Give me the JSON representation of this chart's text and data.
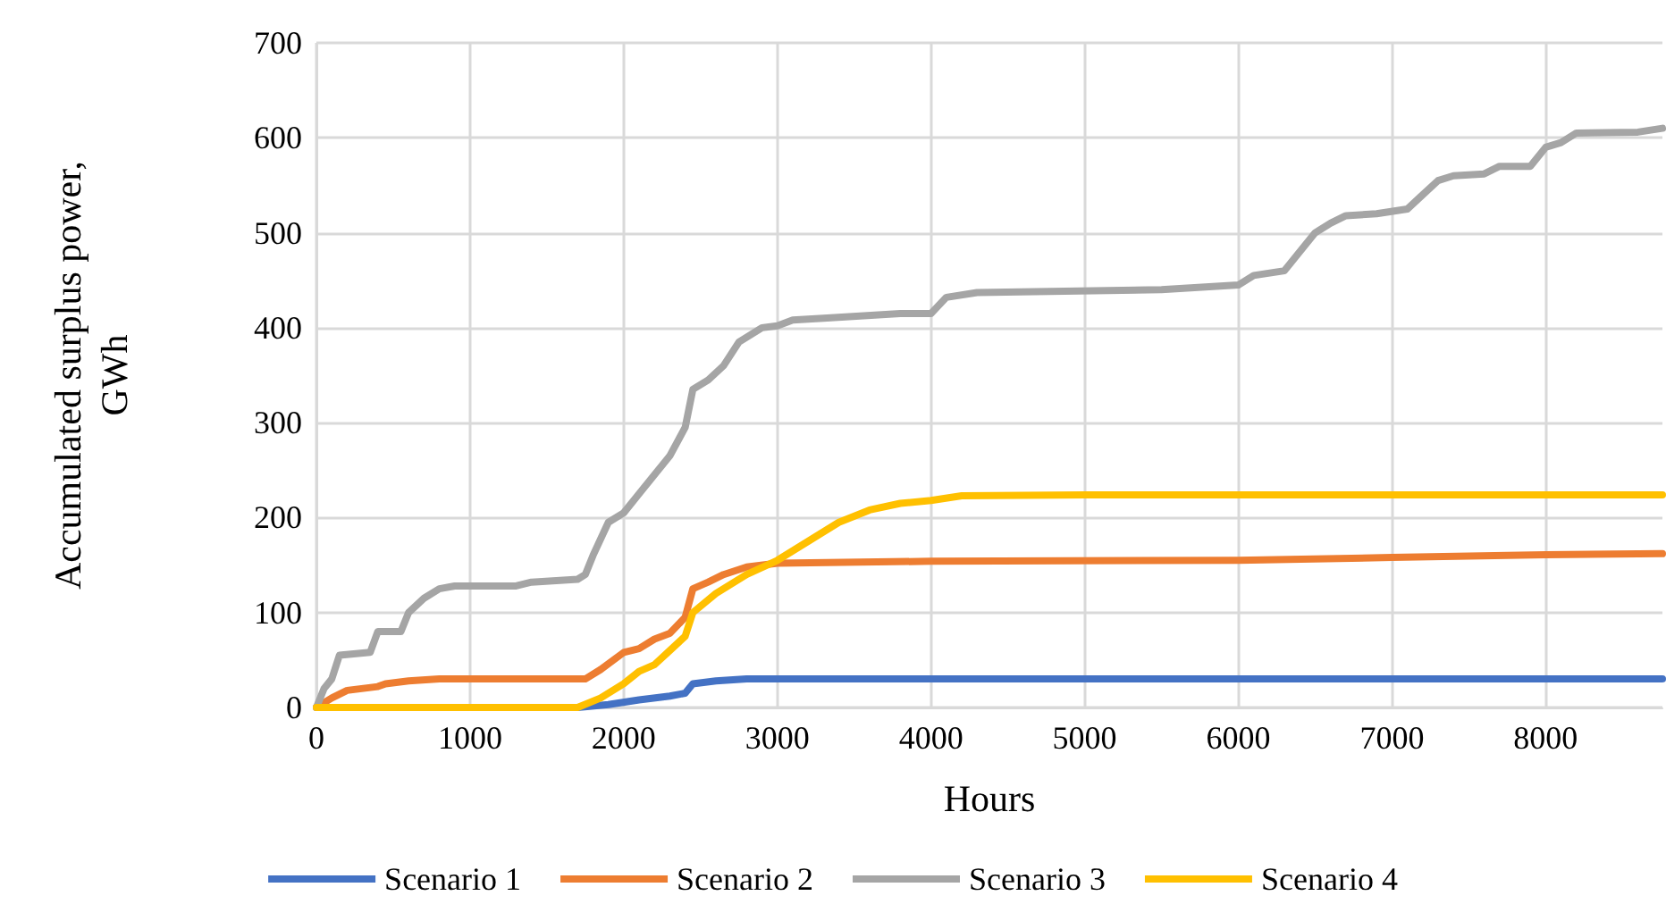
{
  "chart_data": {
    "type": "line",
    "xlabel": "Hours",
    "ylabel": "Accumulated surplus power,\nGWh",
    "xlim": [
      0,
      8760
    ],
    "xticks": [
      0,
      1000,
      2000,
      3000,
      4000,
      5000,
      6000,
      7000,
      8000
    ],
    "ylim": [
      0,
      700
    ],
    "yticks": [
      0,
      100,
      200,
      300,
      400,
      500,
      600,
      700
    ],
    "grid": true,
    "legend": "bottom",
    "marker": "none",
    "line_style": "solid",
    "series": [
      {
        "name": "Scenario 1",
        "color": "#4472c4",
        "x": [
          0,
          1700,
          1900,
          2100,
          2300,
          2400,
          2450,
          2600,
          2800,
          8760
        ],
        "values": [
          0,
          0,
          3,
          8,
          12,
          15,
          25,
          28,
          30,
          30
        ]
      },
      {
        "name": "Scenario 2",
        "color": "#ed7d31",
        "x": [
          0,
          100,
          200,
          400,
          450,
          600,
          800,
          1750,
          1850,
          2000,
          2100,
          2200,
          2300,
          2400,
          2450,
          2550,
          2650,
          2800,
          3000,
          4000,
          6000,
          7000,
          8000,
          8760
        ],
        "values": [
          0,
          10,
          18,
          22,
          25,
          28,
          30,
          30,
          40,
          58,
          62,
          72,
          78,
          95,
          125,
          132,
          140,
          148,
          152,
          154,
          155,
          158,
          161,
          162
        ]
      },
      {
        "name": "Scenario 3",
        "color": "#a5a5a5",
        "x": [
          0,
          50,
          100,
          150,
          350,
          400,
          550,
          600,
          700,
          800,
          900,
          1300,
          1400,
          1700,
          1750,
          1800,
          1900,
          2000,
          2100,
          2200,
          2300,
          2400,
          2450,
          2550,
          2650,
          2750,
          2900,
          3000,
          3100,
          3300,
          3800,
          4000,
          4100,
          4300,
          5500,
          6000,
          6100,
          6300,
          6500,
          6600,
          6700,
          6900,
          7100,
          7200,
          7300,
          7400,
          7600,
          7700,
          7900,
          8000,
          8100,
          8200,
          8600,
          8760
        ],
        "values": [
          0,
          20,
          30,
          55,
          58,
          80,
          80,
          100,
          115,
          125,
          128,
          128,
          132,
          135,
          140,
          160,
          195,
          205,
          225,
          245,
          265,
          295,
          335,
          345,
          360,
          385,
          400,
          402,
          408,
          410,
          415,
          415,
          432,
          437,
          440,
          445,
          455,
          460,
          500,
          510,
          518,
          520,
          525,
          540,
          555,
          560,
          562,
          570,
          570,
          590,
          595,
          605,
          606,
          610
        ]
      },
      {
        "name": "Scenario 4",
        "color": "#ffc000",
        "x": [
          0,
          1700,
          1850,
          2000,
          2100,
          2200,
          2300,
          2400,
          2450,
          2600,
          2800,
          3000,
          3200,
          3400,
          3600,
          3800,
          4000,
          4200,
          5000,
          8760
        ],
        "values": [
          0,
          0,
          10,
          25,
          38,
          45,
          60,
          75,
          100,
          120,
          140,
          155,
          175,
          195,
          208,
          215,
          218,
          223,
          224,
          224
        ]
      }
    ]
  }
}
